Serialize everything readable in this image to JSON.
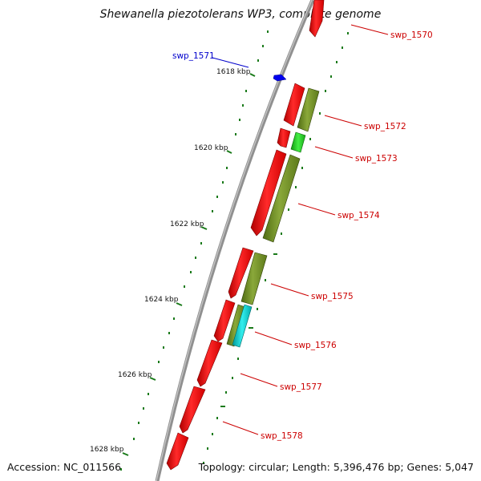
{
  "title": "Shewanella piezotolerans WP3, complete genome",
  "footer": {
    "accession": "Accession: NC_011566",
    "summary": "Topology: circular; Length: 5,396,476 bp; Genes: 5,047"
  },
  "colors": {
    "backbone": "#808080",
    "gene_forward": "#ff0000",
    "gene_reverse_blue": "#0000ee",
    "cds_olive": "#6b8e23",
    "cds_green": "#22cc22",
    "cds_cyan": "#00cccc",
    "tick": "#1a7a1a",
    "label_red": "#cc0000",
    "label_blue": "#0000cc"
  },
  "scale_labels": [
    "1618 kbp",
    "1620 kbp",
    "1622 kbp",
    "1624 kbp",
    "1626 kbp",
    "1628 kbp"
  ],
  "gene_labels": [
    {
      "name": "swp_1570",
      "color": "red"
    },
    {
      "name": "swp_1571",
      "color": "blue"
    },
    {
      "name": "swp_1572",
      "color": "red"
    },
    {
      "name": "swp_1573",
      "color": "red"
    },
    {
      "name": "swp_1574",
      "color": "red"
    },
    {
      "name": "swp_1575",
      "color": "red"
    },
    {
      "name": "swp_1576",
      "color": "red"
    },
    {
      "name": "swp_1577",
      "color": "red"
    },
    {
      "name": "swp_1578",
      "color": "red"
    }
  ]
}
